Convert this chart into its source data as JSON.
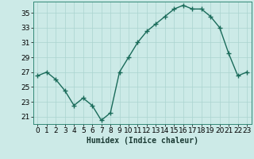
{
  "x": [
    0,
    1,
    2,
    3,
    4,
    5,
    6,
    7,
    8,
    9,
    10,
    11,
    12,
    13,
    14,
    15,
    16,
    17,
    18,
    19,
    20,
    21,
    22,
    23
  ],
  "y": [
    26.5,
    27.0,
    26.0,
    24.5,
    22.5,
    23.5,
    22.5,
    20.5,
    21.5,
    27.0,
    29.0,
    31.0,
    32.5,
    33.5,
    34.5,
    35.5,
    36.0,
    35.5,
    35.5,
    34.5,
    33.0,
    29.5,
    26.5,
    27.0
  ],
  "line_color": "#1a6b5a",
  "marker": "+",
  "markersize": 4,
  "linewidth": 1.0,
  "bg_color": "#cceae7",
  "grid_color": "#aad4d0",
  "xlabel": "Humidex (Indice chaleur)",
  "xlim": [
    -0.5,
    23.5
  ],
  "ylim": [
    20.0,
    36.5
  ],
  "yticks": [
    21,
    23,
    25,
    27,
    29,
    31,
    33,
    35
  ],
  "xticks": [
    0,
    1,
    2,
    3,
    4,
    5,
    6,
    7,
    8,
    9,
    10,
    11,
    12,
    13,
    14,
    15,
    16,
    17,
    18,
    19,
    20,
    21,
    22,
    23
  ],
  "xlabel_fontsize": 7,
  "tick_fontsize": 6.5,
  "spine_color": "#338877"
}
